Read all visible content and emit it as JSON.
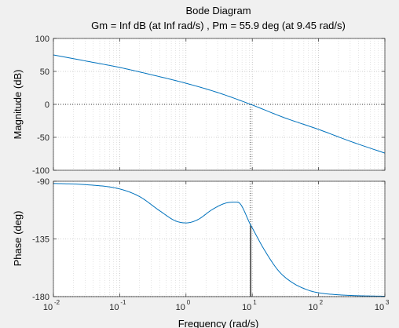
{
  "chart_data": {
    "type": "line",
    "title": "Bode Diagram",
    "subtitle": "Gm = Inf dB (at Inf rad/s) ,  Pm = 55.9 deg (at 9.45 rad/s)",
    "xlabel": "Frequency  (rad/s)",
    "xscale": "log",
    "xlim": [
      0.01,
      1000
    ],
    "x_ticks": [
      0.01,
      0.1,
      1,
      10,
      100,
      1000
    ],
    "x_tick_labels": [
      {
        "base": "10",
        "exp": "-2"
      },
      {
        "base": "10",
        "exp": "-1"
      },
      {
        "base": "10",
        "exp": "0"
      },
      {
        "base": "10",
        "exp": "1"
      },
      {
        "base": "10",
        "exp": "2"
      },
      {
        "base": "10",
        "exp": "3"
      }
    ],
    "grid": true,
    "line_color": "#0072bd",
    "crossover_frequency": 9.45,
    "phase_margin_deg": 55.9,
    "magnitude": {
      "ylabel": "Magnitude (dB)",
      "ylim": [
        -100,
        100
      ],
      "y_ticks": [
        100,
        50,
        0,
        -50,
        -100
      ],
      "y_tick_labels": [
        "100",
        "50",
        "0",
        "-50",
        "-100"
      ],
      "x": [
        0.01,
        0.03,
        0.1,
        0.3,
        1,
        3,
        9.45,
        30,
        100,
        300,
        1000
      ],
      "db": [
        75,
        66,
        56,
        45,
        32,
        18,
        0,
        -20,
        -38,
        -56,
        -74
      ]
    },
    "phase": {
      "ylabel": "Phase (deg)",
      "ylim": [
        -180,
        -90
      ],
      "y_ticks": [
        -90,
        -135,
        -180
      ],
      "y_tick_labels": [
        "-90",
        "-135",
        "-180"
      ],
      "x": [
        0.01,
        0.03,
        0.1,
        0.2,
        0.4,
        0.7,
        1,
        1.5,
        2.5,
        4,
        6,
        9.45,
        15,
        25,
        40,
        70,
        100,
        200,
        400,
        1000
      ],
      "deg": [
        -91.7,
        -92.6,
        -96,
        -102,
        -113,
        -121,
        -122.5,
        -120,
        -112,
        -107,
        -106.3,
        -124.1,
        -143,
        -160,
        -169,
        -175,
        -177,
        -178.6,
        -179.3,
        -179.7
      ]
    }
  }
}
